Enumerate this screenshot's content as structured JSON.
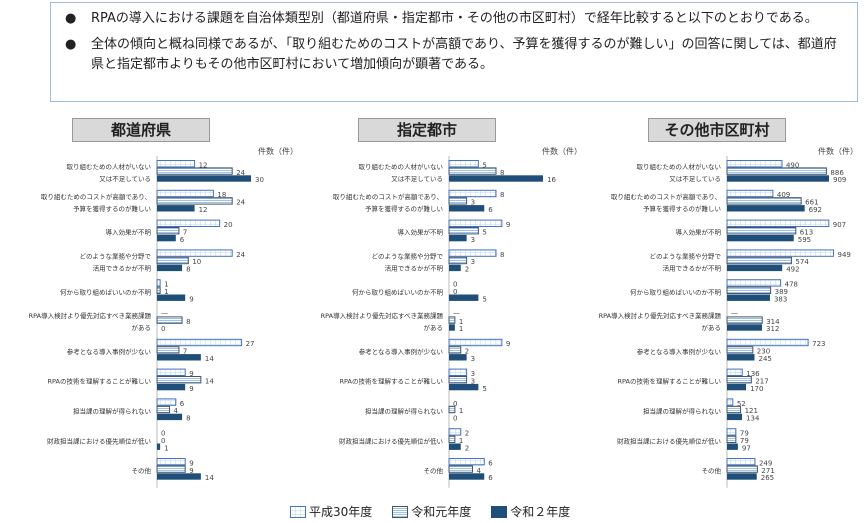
{
  "notes": [
    {
      "bullet": "●",
      "text": "RPAの導入における課題を自治体類型別（都道府県・指定都市・その他の市区町村）で経年比較すると以下のとおりである。"
    },
    {
      "bullet": "●",
      "text": "全体の傾向と概ね同様であるが、「取り組むためのコストが高額であり、予算を獲得するのが難しい」の回答に関しては、都道府県と指定都市よりもその他市区町村において増加傾向が顕著である。"
    }
  ],
  "legend": [
    "平成30年度",
    "令和元年度",
    "令和２年度"
  ],
  "colors": {
    "h30_border": "#4472c4",
    "r1_fill": "#9dc3e6",
    "r1_border": "#44546a",
    "r2_fill": "#1f4e79"
  },
  "chart_data": [
    {
      "type": "bar",
      "title": "都道府県",
      "unit_label": "件数（件）",
      "categories": [
        "取り組むための人材がいない\n又は不足している",
        "取り組むためのコストが高額であり、\n予算を獲得するのが難しい",
        "導入効果が不明",
        "どのような業務や分野で\n活用できるかが不明",
        "何から取り組めばいいのか不明",
        "RPA導入検討より優先対応すべき業務課題\nがある",
        "参考となる導入事例が少ない",
        "RPAの技術を理解することが難しい",
        "担当課の理解が得られない",
        "財政担当課における優先順位が低い",
        "その他"
      ],
      "series": [
        {
          "name": "平成30年度",
          "values": [
            12,
            18,
            20,
            24,
            1,
            null,
            27,
            9,
            6,
            0,
            9
          ]
        },
        {
          "name": "令和元年度",
          "values": [
            24,
            24,
            7,
            10,
            1,
            8,
            7,
            14,
            4,
            0,
            9
          ]
        },
        {
          "name": "令和２年度",
          "values": [
            30,
            12,
            6,
            8,
            9,
            0,
            14,
            9,
            8,
            1,
            14
          ]
        }
      ]
    },
    {
      "type": "bar",
      "title": "指定都市",
      "unit_label": "件数（件）",
      "categories": [
        "取り組むための人材がいない\n又は不足している",
        "取り組むためのコストが高額であり、\n予算を獲得するのが難しい",
        "導入効果が不明",
        "どのような業務や分野で\n活用できるかが不明",
        "何から取り組めばいいのか不明",
        "RPA導入検討より優先対応すべき業務課題\nがある",
        "参考となる導入事例が少ない",
        "RPAの技術を理解することが難しい",
        "担当課の理解が得られない",
        "財政担当課における優先順位が低い",
        "その他"
      ],
      "series": [
        {
          "name": "平成30年度",
          "values": [
            5,
            8,
            9,
            8,
            0,
            null,
            9,
            3,
            0,
            2,
            6
          ]
        },
        {
          "name": "令和元年度",
          "values": [
            8,
            3,
            5,
            3,
            0,
            1,
            2,
            3,
            1,
            1,
            4
          ]
        },
        {
          "name": "令和２年度",
          "values": [
            16,
            6,
            3,
            2,
            5,
            1,
            3,
            5,
            0,
            2,
            6
          ]
        }
      ]
    },
    {
      "type": "bar",
      "title": "その他市区町村",
      "unit_label": "件数（件）",
      "categories": [
        "取り組むための人材がいない\n又は不足している",
        "取り組むためのコストが高額であり、\n予算を獲得するのが難しい",
        "導入効果が不明",
        "どのような業務や分野で\n活用できるかが不明",
        "何から取り組めばいいのか不明",
        "RPA導入検討より優先対応すべき業務課題\nがある",
        "参考となる導入事例が少ない",
        "RPAの技術を理解することが難しい",
        "担当課の理解が得られない",
        "財政担当課における優先順位が低い",
        "その他"
      ],
      "series": [
        {
          "name": "平成30年度",
          "values": [
            490,
            409,
            907,
            949,
            478,
            null,
            723,
            136,
            52,
            79,
            249
          ]
        },
        {
          "name": "令和元年度",
          "values": [
            886,
            661,
            613,
            574,
            389,
            314,
            230,
            217,
            121,
            79,
            271
          ]
        },
        {
          "name": "令和２年度",
          "values": [
            909,
            692,
            595,
            492,
            383,
            312,
            245,
            170,
            134,
            97,
            265
          ]
        }
      ]
    }
  ]
}
